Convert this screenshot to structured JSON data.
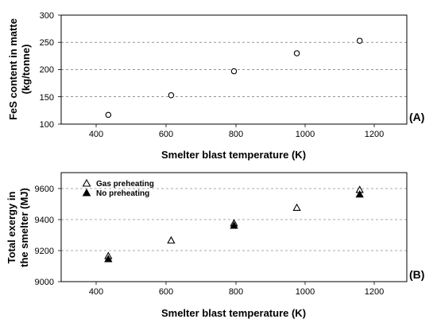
{
  "chart_data": [
    {
      "type": "scatter",
      "panel_label": "(A)",
      "xlabel": "Smelter blast temperature (K)",
      "ylabel_lines": [
        "FeS content in matte",
        "(kg/tonne)"
      ],
      "xlim": [
        250,
        1350
      ],
      "ylim": [
        100,
        300
      ],
      "x_ticks": [
        400,
        600,
        800,
        1000,
        1200
      ],
      "y_ticks": [
        100,
        150,
        200,
        250,
        300
      ],
      "grid": "dashed",
      "legend": "none",
      "series": [
        {
          "marker": "open-circle",
          "points": [
            {
              "x": 400,
              "y": 117
            },
            {
              "x": 600,
              "y": 153
            },
            {
              "x": 800,
              "y": 197
            },
            {
              "x": 1000,
              "y": 230
            },
            {
              "x": 1200,
              "y": 253
            }
          ]
        }
      ]
    },
    {
      "type": "scatter",
      "panel_label": "(B)",
      "xlabel": "Smelter blast temperature (K)",
      "ylabel_lines": [
        "Total exergy in",
        "the smelter (MJ)"
      ],
      "xlim": [
        250,
        1350
      ],
      "ylim": [
        9000,
        9700
      ],
      "x_ticks": [
        400,
        600,
        800,
        1000,
        1200
      ],
      "y_ticks": [
        9000,
        9200,
        9400,
        9600
      ],
      "grid": "dashed",
      "legend": "top-left",
      "series": [
        {
          "name": "Gas preheating",
          "marker": "open-triangle",
          "points": [
            {
              "x": 400,
              "y": 9165
            },
            {
              "x": 600,
              "y": 9265
            },
            {
              "x": 800,
              "y": 9375
            },
            {
              "x": 1000,
              "y": 9475
            },
            {
              "x": 1200,
              "y": 9590
            }
          ]
        },
        {
          "name": "No preheating",
          "marker": "filled-triangle",
          "points": [
            {
              "x": 400,
              "y": 9145
            },
            {
              "x": 800,
              "y": 9360
            },
            {
              "x": 1200,
              "y": 9560
            }
          ]
        }
      ]
    }
  ]
}
